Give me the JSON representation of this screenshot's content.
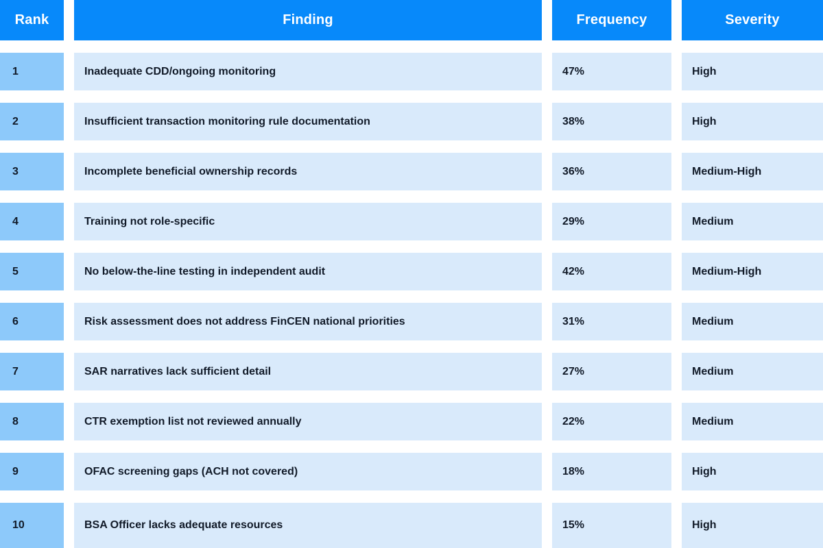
{
  "colors": {
    "header_bg": "#0789fa",
    "header_text": "#ffffff",
    "rank_cell_bg": "#8dc9fa",
    "data_cell_bg": "#d9eafb",
    "cell_text": "#111a28",
    "page_bg": "#ffffff"
  },
  "table": {
    "headers": {
      "rank": "Rank",
      "finding": "Finding",
      "frequency": "Frequency",
      "severity": "Severity"
    },
    "rows": [
      {
        "rank": "1",
        "finding": "Inadequate CDD/ongoing monitoring",
        "frequency": "47%",
        "severity": "High"
      },
      {
        "rank": "2",
        "finding": "Insufficient transaction monitoring rule documentation",
        "frequency": "38%",
        "severity": "High"
      },
      {
        "rank": "3",
        "finding": "Incomplete beneficial ownership records",
        "frequency": "36%",
        "severity": "Medium-High"
      },
      {
        "rank": "4",
        "finding": "Training not role-specific",
        "frequency": "29%",
        "severity": "Medium"
      },
      {
        "rank": "5",
        "finding": "No below-the-line testing in independent audit",
        "frequency": "42%",
        "severity": "Medium-High"
      },
      {
        "rank": "6",
        "finding": "Risk assessment does not address FinCEN national priorities",
        "frequency": "31%",
        "severity": "Medium"
      },
      {
        "rank": "7",
        "finding": "SAR narratives lack sufficient detail",
        "frequency": "27%",
        "severity": "Medium"
      },
      {
        "rank": "8",
        "finding": "CTR exemption list not reviewed annually",
        "frequency": "22%",
        "severity": "Medium"
      },
      {
        "rank": "9",
        "finding": "OFAC screening gaps (ACH not covered)",
        "frequency": "18%",
        "severity": "High"
      },
      {
        "rank": "10",
        "finding": "BSA Officer lacks adequate resources",
        "frequency": "15%",
        "severity": "High"
      }
    ]
  },
  "chart_data": {
    "type": "table",
    "title": "",
    "columns": [
      "Rank",
      "Finding",
      "Frequency",
      "Severity"
    ],
    "rows": [
      [
        1,
        "Inadequate CDD/ongoing monitoring",
        "47%",
        "High"
      ],
      [
        2,
        "Insufficient transaction monitoring rule documentation",
        "38%",
        "High"
      ],
      [
        3,
        "Incomplete beneficial ownership records",
        "36%",
        "Medium-High"
      ],
      [
        4,
        "Training not role-specific",
        "29%",
        "Medium"
      ],
      [
        5,
        "No below-the-line testing in independent audit",
        "42%",
        "Medium-High"
      ],
      [
        6,
        "Risk assessment does not address FinCEN national priorities",
        "31%",
        "Medium"
      ],
      [
        7,
        "SAR narratives lack sufficient detail",
        "27%",
        "Medium"
      ],
      [
        8,
        "CTR exemption list not reviewed annually",
        "22%",
        "Medium"
      ],
      [
        9,
        "OFAC screening gaps (ACH not covered)",
        "18%",
        "High"
      ],
      [
        10,
        "BSA Officer lacks adequate resources",
        "15%",
        "High"
      ]
    ],
    "frequency_values_pct": [
      47,
      38,
      36,
      29,
      42,
      31,
      27,
      22,
      18,
      15
    ],
    "layout": {
      "header_row": true,
      "grid": "off",
      "clipped_right": true,
      "clipped_bottom": true
    }
  }
}
